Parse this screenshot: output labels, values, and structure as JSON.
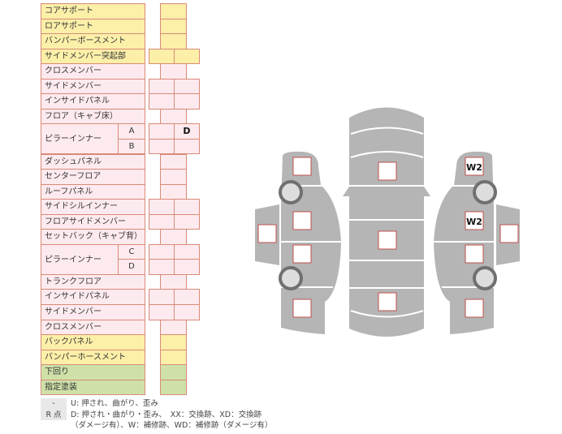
{
  "colors": {
    "yellow": "#fcefa8",
    "pink": "#fdeaee",
    "green": "#cfe1a8",
    "border": "#d98a78",
    "body_gray": "#b5b5b5",
    "box_border": "#c0504d"
  },
  "rows": [
    {
      "label": "コアサポート",
      "color": "y",
      "cols": 1
    },
    {
      "label": "ロアサポート",
      "color": "y",
      "cols": 1
    },
    {
      "label": "バンパーボースメント",
      "color": "y",
      "cols": 1
    },
    {
      "label": "サイドメンバー突起部",
      "color": "y",
      "cols": 2
    },
    {
      "label": "クロスメンバー",
      "color": "p",
      "cols": 1
    },
    {
      "label": "サイドメンバー",
      "color": "p",
      "cols": 2
    },
    {
      "label": "インサイドパネル",
      "color": "p",
      "cols": 2
    },
    {
      "label": "フロア（キャブ床）",
      "color": "p",
      "cols": 1
    },
    {
      "label": "ピラーインナー",
      "sub": "A",
      "color": "p",
      "cols": 2,
      "marks": [
        "",
        "D"
      ],
      "group_start": 2
    },
    {
      "sub": "B",
      "color": "p",
      "cols": 2
    },
    {
      "label": "ダッシュパネル",
      "color": "p",
      "cols": 1
    },
    {
      "label": "センターフロア",
      "color": "p",
      "cols": 1
    },
    {
      "label": "ルーフパネル",
      "color": "p",
      "cols": 1
    },
    {
      "label": "サイドシルインナー",
      "color": "p",
      "cols": 2
    },
    {
      "label": "フロアサイドメンバー",
      "color": "p",
      "cols": 2
    },
    {
      "label": "セットバック（キャブ背）",
      "color": "p",
      "cols": 1
    },
    {
      "label": "ピラーインナー",
      "sub": "C",
      "color": "p",
      "cols": 2,
      "group_start": 2
    },
    {
      "sub": "D",
      "color": "p",
      "cols": 2
    },
    {
      "label": "トランクフロア",
      "color": "p",
      "cols": 1
    },
    {
      "label": "インサイドパネル",
      "color": "p",
      "cols": 2
    },
    {
      "label": "サイドメンバー",
      "color": "p",
      "cols": 2
    },
    {
      "label": "クロスメンバー",
      "color": "p",
      "cols": 1
    },
    {
      "label": "バックパネル",
      "color": "y",
      "cols": 1
    },
    {
      "label": "バンパーホースメント",
      "color": "y",
      "cols": 1
    },
    {
      "label": "下回り",
      "color": "g",
      "cols": 1
    },
    {
      "label": "指定塗装",
      "color": "g",
      "cols": 1
    }
  ],
  "diagram": {
    "marks": {
      "right_front": "W2",
      "right_front_door": "W2"
    }
  },
  "legend": [
    {
      "key": "-",
      "text": "U: 押され、曲がり、歪み"
    },
    {
      "key": "R 点",
      "text": "D: 押され・曲がり・歪み、　XX：交換跡、XD：交換跡"
    },
    {
      "key": "",
      "text": "（ダメージ有）、W：補修跡、WD：補修跡（ダメージ有）"
    }
  ]
}
